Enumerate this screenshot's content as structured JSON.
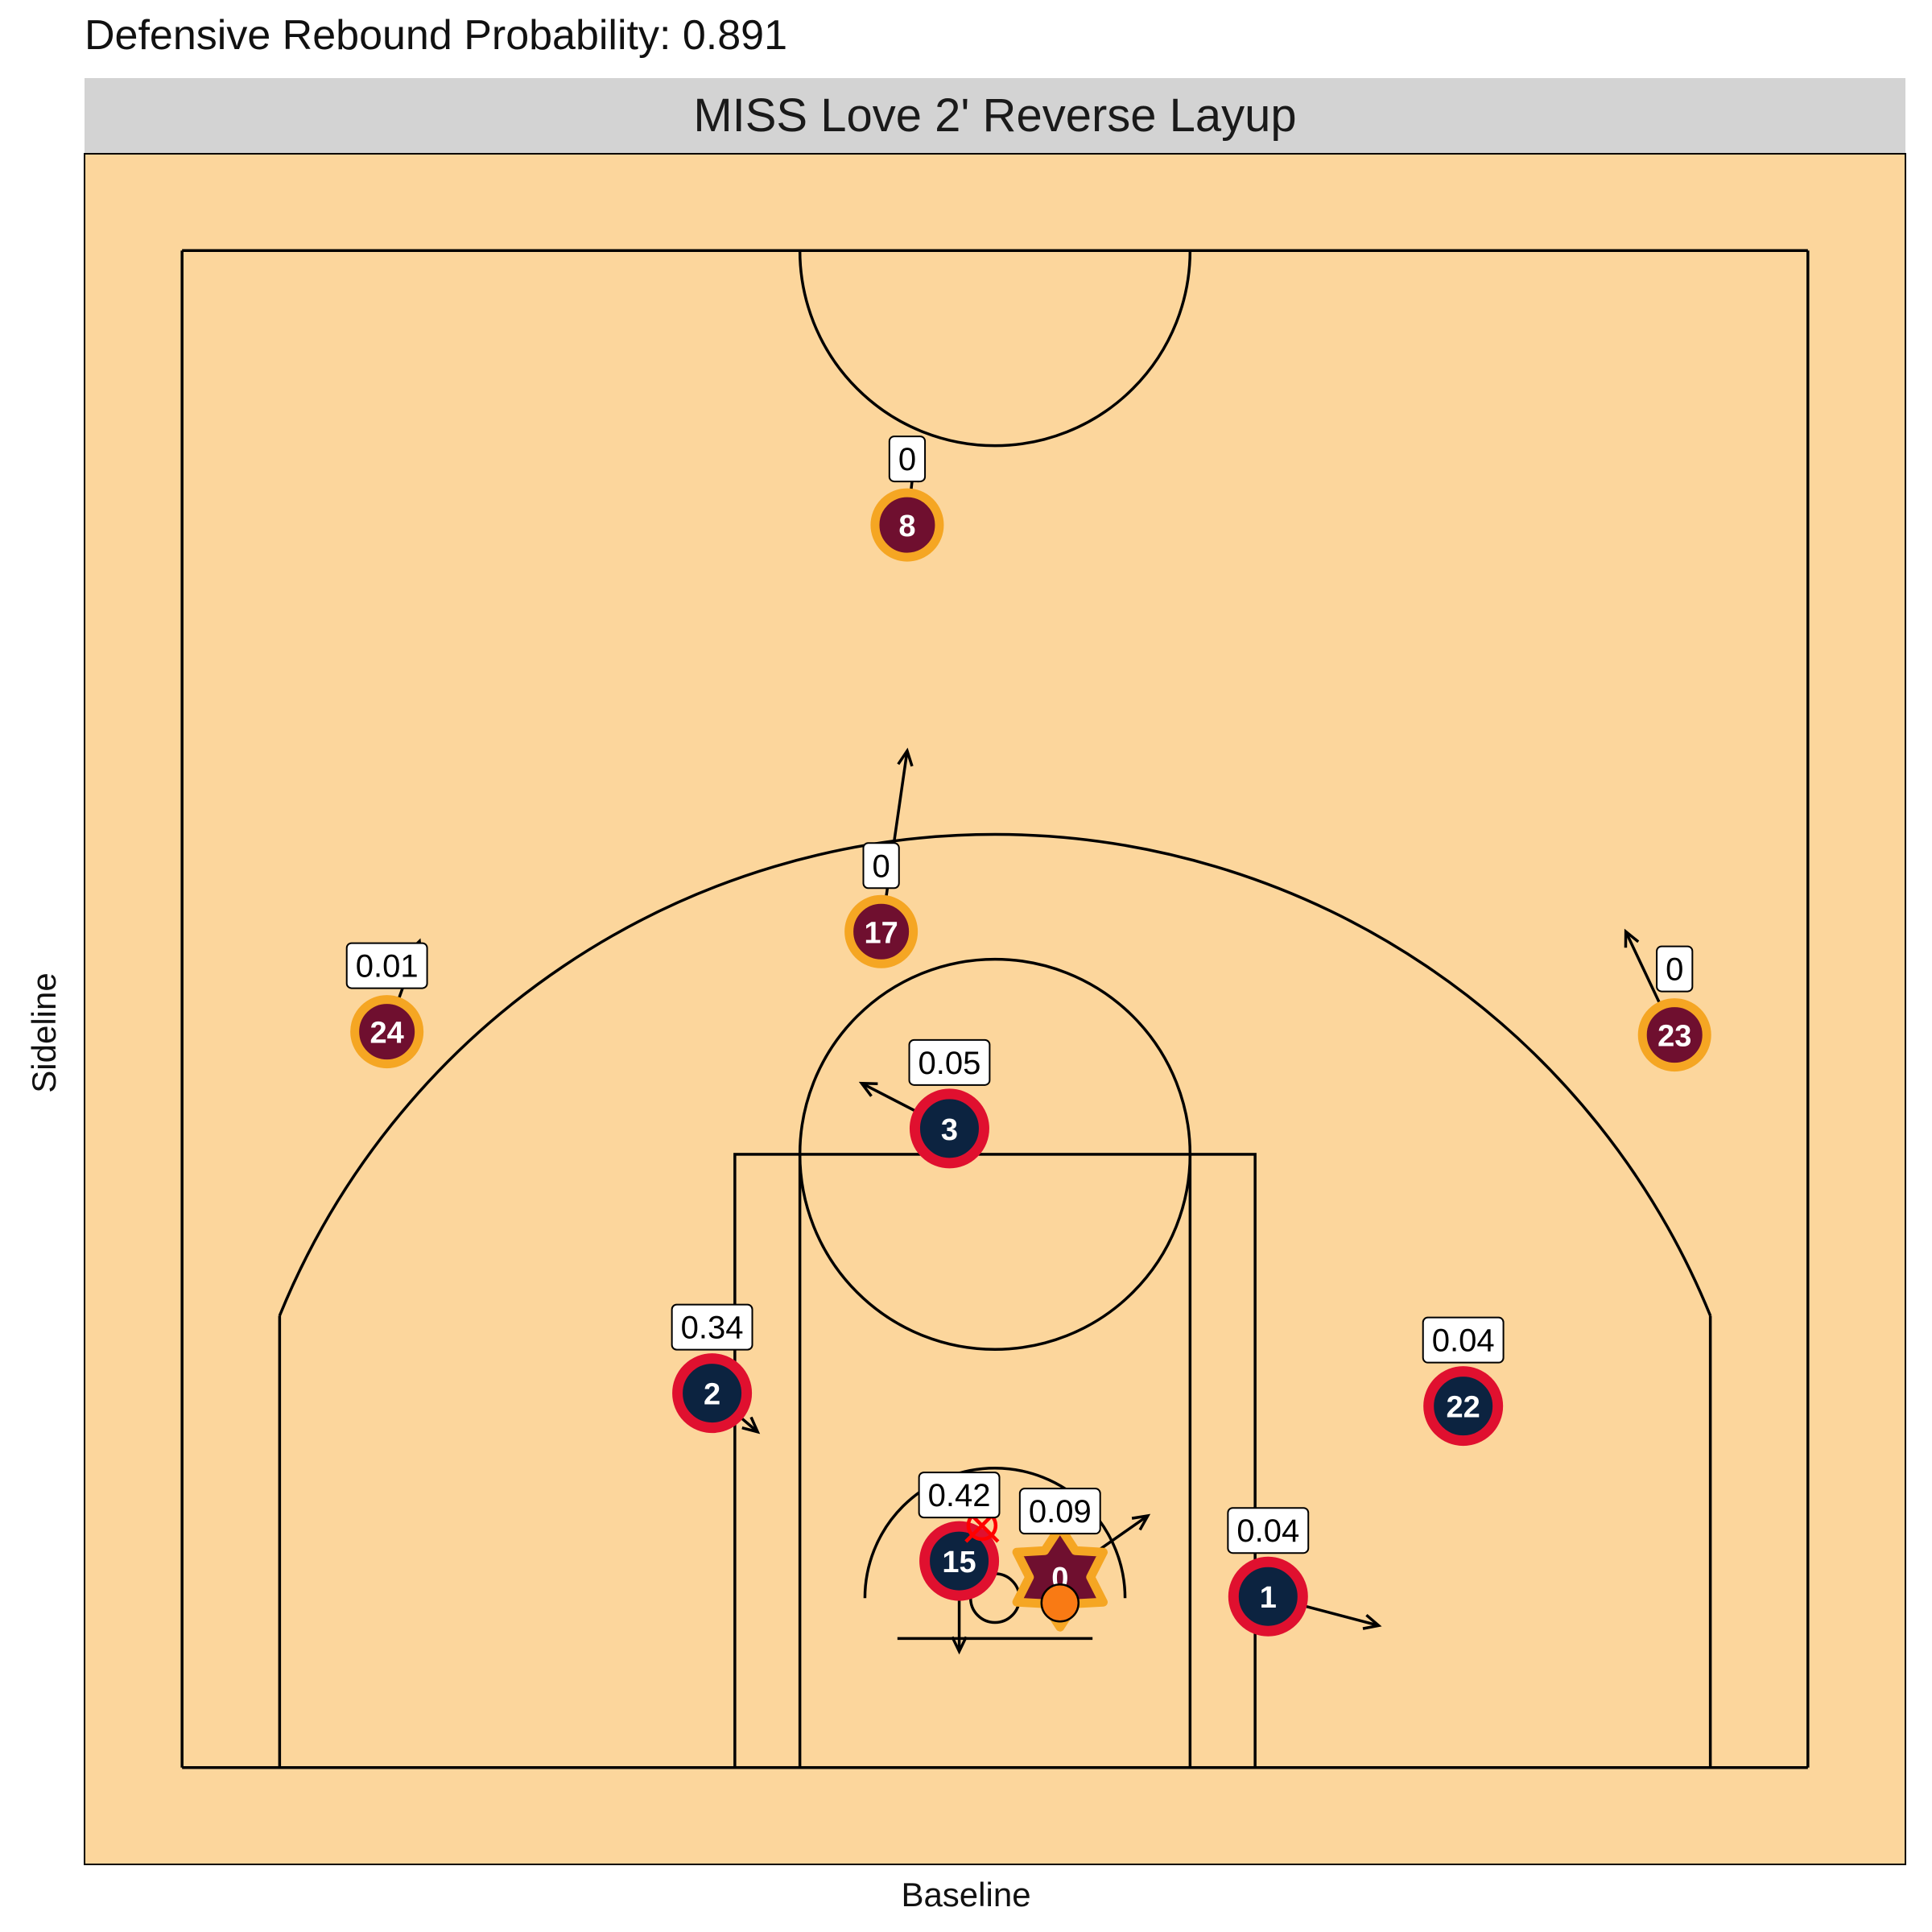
{
  "title": "Defensive Rebound Probability: 0.891",
  "chart_data": {
    "type": "scatter",
    "title": "Defensive Rebound Probability: 0.891",
    "facet_label": "MISS Love 2' Reverse Layup",
    "xlabel": "Baseline",
    "ylabel": "Sideline",
    "grid": false,
    "xlim": [
      -3,
      53
    ],
    "ylim": [
      -3,
      50
    ],
    "colors": {
      "court": "#fcd69c",
      "offense_fill": "#6f0f2f",
      "offense_ring": "#f5a623",
      "defense_fill": "#0c2340",
      "defense_ring": "#e0102f",
      "ball": "#f97a14",
      "rim_marker": "#ff0000",
      "lines": "#000000"
    },
    "players": [
      {
        "team": "offense",
        "number": "8",
        "x": 22.3,
        "y": 38.5,
        "prob": "0",
        "dx": 0.2,
        "dy": 1.8
      },
      {
        "team": "offense",
        "number": "17",
        "x": 21.5,
        "y": 25.9,
        "prob": "0",
        "dx": 0.8,
        "dy": 5.6
      },
      {
        "team": "offense",
        "number": "24",
        "x": 6.3,
        "y": 22.8,
        "prob": "0.01",
        "dx": 1.0,
        "dy": 2.8
      },
      {
        "team": "offense",
        "number": "23",
        "x": 45.9,
        "y": 22.7,
        "prob": "0",
        "dx": -1.5,
        "dy": 3.2
      },
      {
        "team": "offense",
        "number": "0",
        "x": 27.0,
        "y": 5.9,
        "prob": "0.09",
        "dx": 2.7,
        "dy": 1.9,
        "shooter": true
      },
      {
        "team": "defense",
        "number": "3",
        "x": 23.6,
        "y": 19.8,
        "prob": "0.05",
        "dx": -2.7,
        "dy": 1.4
      },
      {
        "team": "defense",
        "number": "2",
        "x": 16.3,
        "y": 11.6,
        "prob": "0.34",
        "dx": 1.4,
        "dy": -1.2
      },
      {
        "team": "defense",
        "number": "22",
        "x": 39.4,
        "y": 11.2,
        "prob": "0.04",
        "dx": 0,
        "dy": 0
      },
      {
        "team": "defense",
        "number": "15",
        "x": 23.9,
        "y": 6.4,
        "prob": "0.42",
        "dx": 0,
        "dy": -2.8
      },
      {
        "team": "defense",
        "number": "1",
        "x": 33.4,
        "y": 5.3,
        "prob": "0.04",
        "dx": 3.4,
        "dy": -0.9
      }
    ],
    "ball": {
      "x": 27.0,
      "y": 5.1
    },
    "rim_target": {
      "x": 24.6,
      "y": 7.5
    }
  }
}
